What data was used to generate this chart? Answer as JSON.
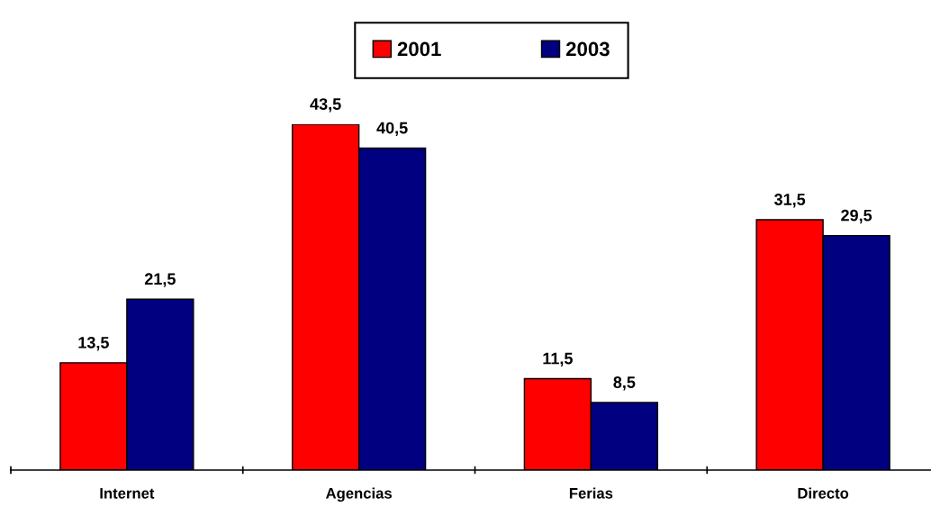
{
  "chart_data": {
    "type": "bar",
    "categories": [
      "Internet",
      "Agencias",
      "Ferias",
      "Directo"
    ],
    "series": [
      {
        "name": "2001",
        "color": "#ff0000",
        "values": [
          13.5,
          43.5,
          11.5,
          31.5
        ],
        "value_labels": [
          "13,5",
          "43,5",
          "11,5",
          "31,5"
        ]
      },
      {
        "name": "2003",
        "color": "#000080",
        "values": [
          21.5,
          40.5,
          8.5,
          29.5
        ],
        "value_labels": [
          "21,5",
          "40,5",
          "8,5",
          "29,5"
        ]
      }
    ],
    "legend": "top",
    "grid": false
  }
}
